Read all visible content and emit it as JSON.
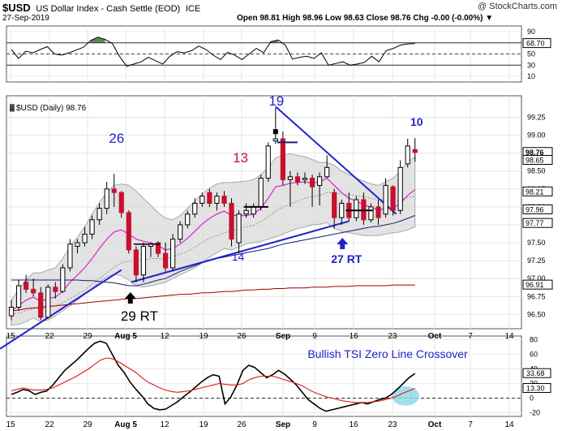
{
  "header": {
    "symbol": "$USD",
    "name": "US Dollar Index - Cash Settle (EOD)",
    "exchange": "ICE",
    "date": "27-Sep-2019",
    "ohlc_text": "Open 98.81  High 98.96  Low 98.63  Close 98.76  Chg -0.00 (-0.00%) ▼",
    "watermark": "@ StockCharts.com"
  },
  "colors": {
    "up": "#ffffff",
    "down": "#c8102e",
    "ema_short": "#e020d0",
    "ema_mid": "#909090",
    "sma_long": "#1a1a7a",
    "sma_200": "#a00000",
    "annotation_blue": "#2222cc",
    "annotation_red": "#d01030",
    "tsi_signal": "#e01818",
    "rsi_fill": "#5a8a5a",
    "highlight": "#8cd6e6"
  },
  "chart_data": [
    {
      "type": "line",
      "panel": "rsi",
      "ylim": [
        0,
        100
      ],
      "ticks": [
        10,
        30,
        50,
        70,
        90
      ],
      "reference_lines": [
        30,
        70
      ],
      "last_value_badge": "68.70",
      "values": [
        58,
        42,
        55,
        52,
        58,
        63,
        50,
        48,
        52,
        57,
        62,
        74,
        80,
        76,
        69,
        46,
        28,
        32,
        36,
        44,
        38,
        32,
        46,
        54,
        52,
        56,
        64,
        58,
        48,
        40,
        53,
        48,
        40,
        50,
        60,
        52,
        72,
        75,
        66,
        41,
        44,
        46,
        42,
        52,
        30,
        33,
        36,
        30,
        32,
        35,
        46,
        36,
        56,
        60,
        66,
        68,
        68.7
      ]
    },
    {
      "type": "candlestick",
      "panel": "price",
      "legend": "$USD (Daily) 98.76",
      "ylim": [
        96.3,
        99.55
      ],
      "yticks": [
        96.5,
        96.75,
        97.0,
        97.25,
        97.5,
        97.75,
        98.0,
        98.25,
        98.5,
        98.75,
        99.0,
        99.25
      ],
      "ytick_labels": [
        "96.50",
        "96.75",
        "97.00",
        "97.25",
        "97.50",
        "97.75",
        "98.00",
        "98.25",
        "98.50",
        "98.75",
        "99.00",
        "99.25"
      ],
      "xtick_labels": [
        "15",
        "22",
        "29",
        "Aug 5",
        "12",
        "19",
        "26",
        "Sep",
        "9",
        "16",
        "23",
        "Oct",
        "7",
        "14"
      ],
      "candles": [
        {
          "o": 96.48,
          "h": 96.7,
          "l": 96.42,
          "c": 96.6
        },
        {
          "o": 96.6,
          "h": 96.98,
          "l": 96.55,
          "c": 96.9
        },
        {
          "o": 96.95,
          "h": 97.05,
          "l": 96.8,
          "c": 96.85
        },
        {
          "o": 96.85,
          "h": 97.0,
          "l": 96.75,
          "c": 96.8
        },
        {
          "o": 96.8,
          "h": 96.88,
          "l": 96.42,
          "c": 96.46
        },
        {
          "o": 96.46,
          "h": 96.92,
          "l": 96.44,
          "c": 96.88
        },
        {
          "o": 96.88,
          "h": 96.95,
          "l": 96.72,
          "c": 96.82
        },
        {
          "o": 96.82,
          "h": 97.2,
          "l": 96.8,
          "c": 97.15
        },
        {
          "o": 97.15,
          "h": 97.55,
          "l": 97.1,
          "c": 97.48
        },
        {
          "o": 97.45,
          "h": 97.55,
          "l": 97.35,
          "c": 97.5
        },
        {
          "o": 97.5,
          "h": 97.72,
          "l": 97.45,
          "c": 97.62
        },
        {
          "o": 97.62,
          "h": 97.88,
          "l": 97.55,
          "c": 97.82
        },
        {
          "o": 97.82,
          "h": 98.05,
          "l": 97.75,
          "c": 97.98
        },
        {
          "o": 97.98,
          "h": 98.35,
          "l": 97.9,
          "c": 98.25
        },
        {
          "o": 98.25,
          "h": 98.46,
          "l": 98.0,
          "c": 98.2
        },
        {
          "o": 98.2,
          "h": 98.22,
          "l": 97.85,
          "c": 97.92
        },
        {
          "o": 97.92,
          "h": 97.95,
          "l": 97.35,
          "c": 97.4
        },
        {
          "o": 97.4,
          "h": 97.45,
          "l": 96.95,
          "c": 97.05
        },
        {
          "o": 97.05,
          "h": 97.5,
          "l": 96.95,
          "c": 97.45
        },
        {
          "o": 97.45,
          "h": 97.5,
          "l": 97.3,
          "c": 97.48
        },
        {
          "o": 97.5,
          "h": 97.52,
          "l": 97.3,
          "c": 97.35
        },
        {
          "o": 97.35,
          "h": 97.5,
          "l": 97.1,
          "c": 97.15
        },
        {
          "o": 97.15,
          "h": 97.62,
          "l": 97.1,
          "c": 97.55
        },
        {
          "o": 97.55,
          "h": 97.8,
          "l": 97.5,
          "c": 97.75
        },
        {
          "o": 97.75,
          "h": 97.95,
          "l": 97.7,
          "c": 97.9
        },
        {
          "o": 97.9,
          "h": 98.12,
          "l": 97.85,
          "c": 98.05
        },
        {
          "o": 98.05,
          "h": 98.2,
          "l": 98.0,
          "c": 98.15
        },
        {
          "o": 98.2,
          "h": 98.25,
          "l": 98.0,
          "c": 98.05
        },
        {
          "o": 98.05,
          "h": 98.2,
          "l": 97.95,
          "c": 98.15
        },
        {
          "o": 98.15,
          "h": 98.22,
          "l": 98.0,
          "c": 98.05
        },
        {
          "o": 98.05,
          "h": 98.12,
          "l": 97.45,
          "c": 97.55
        },
        {
          "o": 97.5,
          "h": 97.95,
          "l": 97.35,
          "c": 97.9
        },
        {
          "o": 97.9,
          "h": 98.05,
          "l": 97.85,
          "c": 97.95
        },
        {
          "o": 97.9,
          "h": 98.05,
          "l": 97.85,
          "c": 98.0
        },
        {
          "o": 98.0,
          "h": 98.45,
          "l": 97.95,
          "c": 98.4
        },
        {
          "o": 98.4,
          "h": 98.9,
          "l": 98.35,
          "c": 98.85
        },
        {
          "o": 98.92,
          "h": 99.38,
          "l": 98.88,
          "c": 98.95
        },
        {
          "o": 98.95,
          "h": 99.05,
          "l": 98.3,
          "c": 98.38
        },
        {
          "o": 98.38,
          "h": 98.5,
          "l": 98.0,
          "c": 98.42
        },
        {
          "o": 98.42,
          "h": 98.48,
          "l": 98.3,
          "c": 98.35
        },
        {
          "o": 98.38,
          "h": 98.48,
          "l": 98.32,
          "c": 98.4
        },
        {
          "o": 98.4,
          "h": 98.45,
          "l": 98.0,
          "c": 98.28
        },
        {
          "o": 98.3,
          "h": 98.48,
          "l": 98.02,
          "c": 98.42
        },
        {
          "o": 98.42,
          "h": 98.72,
          "l": 98.4,
          "c": 98.55
        },
        {
          "o": 98.2,
          "h": 98.25,
          "l": 97.7,
          "c": 97.85
        },
        {
          "o": 97.85,
          "h": 98.1,
          "l": 97.75,
          "c": 98.05
        },
        {
          "o": 98.05,
          "h": 98.2,
          "l": 97.8,
          "c": 97.85
        },
        {
          "o": 97.85,
          "h": 98.15,
          "l": 97.8,
          "c": 98.1
        },
        {
          "o": 98.1,
          "h": 98.2,
          "l": 97.75,
          "c": 97.82
        },
        {
          "o": 97.82,
          "h": 98.05,
          "l": 97.78,
          "c": 98.0
        },
        {
          "o": 98.0,
          "h": 98.1,
          "l": 97.75,
          "c": 97.85
        },
        {
          "o": 97.9,
          "h": 98.4,
          "l": 97.85,
          "c": 98.3
        },
        {
          "o": 98.28,
          "h": 98.3,
          "l": 97.88,
          "c": 97.95
        },
        {
          "o": 97.95,
          "h": 98.65,
          "l": 97.9,
          "c": 98.55
        },
        {
          "o": 98.6,
          "h": 98.95,
          "l": 98.55,
          "c": 98.85
        },
        {
          "o": 98.8,
          "h": 98.96,
          "l": 98.63,
          "c": 98.76
        }
      ],
      "series": [
        {
          "name": "ema_short",
          "values": [
            96.55,
            96.62,
            96.7,
            96.74,
            96.68,
            96.72,
            96.74,
            96.82,
            96.95,
            97.05,
            97.15,
            97.28,
            97.42,
            97.55,
            97.65,
            97.68,
            97.62,
            97.55,
            97.52,
            97.5,
            97.46,
            97.4,
            97.42,
            97.48,
            97.56,
            97.66,
            97.76,
            97.84,
            97.9,
            97.94,
            97.88,
            97.88,
            97.88,
            97.9,
            97.98,
            98.12,
            98.28,
            98.3,
            98.33,
            98.34,
            98.35,
            98.33,
            98.35,
            98.4,
            98.3,
            98.2,
            98.12,
            98.08,
            98.03,
            98.0,
            97.95,
            97.98,
            97.98,
            98.05,
            98.16,
            98.24
          ]
        },
        {
          "name": "ema_mid",
          "values": [
            96.5,
            96.52,
            96.55,
            96.58,
            96.58,
            96.6,
            96.62,
            96.66,
            96.72,
            96.78,
            96.84,
            96.92,
            97.0,
            97.08,
            97.16,
            97.22,
            97.24,
            97.24,
            97.26,
            97.28,
            97.28,
            97.28,
            97.3,
            97.34,
            97.38,
            97.44,
            97.5,
            97.56,
            97.6,
            97.64,
            97.66,
            97.7,
            97.72,
            97.74,
            97.8,
            97.86,
            97.94,
            98.0,
            98.04,
            98.08,
            98.12,
            98.14,
            98.16,
            98.2,
            98.2,
            98.18,
            98.17,
            98.16,
            98.14,
            98.12,
            98.1,
            98.1,
            98.08,
            98.1,
            98.13,
            98.15
          ]
        },
        {
          "name": "sma_long",
          "values": [
            96.98,
            96.98,
            96.98,
            96.98,
            96.98,
            96.98,
            96.98,
            96.98,
            96.98,
            96.98,
            96.97,
            96.97,
            96.96,
            96.95,
            96.94,
            96.92,
            96.9,
            96.9,
            96.92,
            96.95,
            96.98,
            97.0,
            97.05,
            97.1,
            97.14,
            97.18,
            97.22,
            97.25,
            97.28,
            97.3,
            97.32,
            97.34,
            97.36,
            97.38,
            97.4,
            97.42,
            97.45,
            97.48,
            97.5,
            97.52,
            97.54,
            97.56,
            97.58,
            97.6,
            97.62,
            97.64,
            97.66,
            97.68,
            97.7,
            97.72,
            97.73,
            97.75,
            97.77,
            97.8,
            97.84,
            97.88
          ]
        },
        {
          "name": "sma_200",
          "values": [
            96.55,
            96.56,
            96.58,
            96.59,
            96.6,
            96.61,
            96.62,
            96.63,
            96.64,
            96.65,
            96.66,
            96.67,
            96.68,
            96.69,
            96.7,
            96.71,
            96.72,
            96.72,
            96.73,
            96.74,
            96.75,
            96.76,
            96.77,
            96.78,
            96.78,
            96.79,
            96.8,
            96.8,
            96.81,
            96.82,
            96.82,
            96.83,
            96.84,
            96.84,
            96.85,
            96.85,
            96.86,
            96.86,
            96.87,
            96.87,
            96.87,
            96.88,
            96.88,
            96.88,
            96.89,
            96.89,
            96.89,
            96.9,
            96.9,
            96.9,
            96.9,
            96.9,
            96.91,
            96.91,
            96.91,
            96.91
          ]
        }
      ],
      "band_upper": [
        96.7,
        96.85,
        96.98,
        97.08,
        97.08,
        97.12,
        97.15,
        97.28,
        97.45,
        97.58,
        97.72,
        97.9,
        98.06,
        98.2,
        98.3,
        98.32,
        98.3,
        98.22,
        98.12,
        98.02,
        97.92,
        97.84,
        97.82,
        97.88,
        97.98,
        98.08,
        98.18,
        98.26,
        98.32,
        98.34,
        98.34,
        98.35,
        98.36,
        98.38,
        98.45,
        98.55,
        98.68,
        98.72,
        98.74,
        98.72,
        98.7,
        98.66,
        98.62,
        98.62,
        98.58,
        98.5,
        98.45,
        98.4,
        98.36,
        98.32,
        98.3,
        98.35,
        98.4,
        98.5,
        98.62,
        98.7
      ],
      "band_lower": [
        96.35,
        96.36,
        96.4,
        96.45,
        96.4,
        96.42,
        96.48,
        96.55,
        96.62,
        96.7,
        96.78,
        96.86,
        96.95,
        97.02,
        97.06,
        97.04,
        96.98,
        96.9,
        96.88,
        96.9,
        96.92,
        96.95,
        97.0,
        97.05,
        97.1,
        97.15,
        97.22,
        97.3,
        97.36,
        97.42,
        97.4,
        97.44,
        97.48,
        97.5,
        97.52,
        97.55,
        97.58,
        97.62,
        97.66,
        97.7,
        97.72,
        97.75,
        97.76,
        97.78,
        97.7,
        97.66,
        97.64,
        97.62,
        97.6,
        97.6,
        97.6,
        97.62,
        97.64,
        97.65,
        97.68,
        97.72
      ],
      "right_badges": [
        {
          "value": 98.76,
          "label": "98.76",
          "style": "bold"
        },
        {
          "value": 98.65,
          "label": "98.65",
          "style": "plain"
        },
        {
          "value": 98.21,
          "label": "98.21",
          "style": "plain"
        },
        {
          "value": 97.96,
          "label": "97.96",
          "style": "plain"
        },
        {
          "value": 97.77,
          "label": "97.77",
          "style": "plain"
        },
        {
          "value": 96.91,
          "label": "96.91",
          "style": "plain"
        }
      ],
      "annotations": [
        {
          "text": "26",
          "color": "annotation_blue"
        },
        {
          "text": "13",
          "color": "annotation_red"
        },
        {
          "text": "19",
          "color": "annotation_blue"
        },
        {
          "text": "10",
          "color": "annotation_blue"
        },
        {
          "text": "14",
          "color": "annotation_blue"
        },
        {
          "text": "27 RT",
          "color": "annotation_blue"
        },
        {
          "text": "29 RT",
          "color": "black"
        }
      ]
    },
    {
      "type": "line",
      "panel": "tsi",
      "title": "Bullish TSI Zero Line Crossover",
      "ylim": [
        -25,
        85
      ],
      "ticks": [
        -20,
        0,
        20,
        40,
        60,
        80
      ],
      "tick_labels": [
        "-20",
        "0",
        "20",
        "40",
        "60",
        "80"
      ],
      "series": [
        {
          "name": "tsi",
          "values": [
            5,
            8,
            12,
            10,
            5,
            8,
            10,
            18,
            28,
            38,
            45,
            52,
            60,
            68,
            75,
            78,
            75,
            60,
            45,
            35,
            22,
            12,
            3,
            -8,
            -14,
            -16,
            -15,
            -10,
            -5,
            2,
            8,
            15,
            22,
            28,
            32,
            30,
            -8,
            2,
            18,
            38,
            45,
            42,
            35,
            28,
            32,
            38,
            33,
            26,
            18,
            8,
            -2,
            -8,
            -14,
            -18,
            -16,
            -14,
            -12,
            -10,
            -8,
            -6,
            -8,
            -5,
            -2,
            0,
            5,
            12,
            20,
            28,
            33.68
          ]
        },
        {
          "name": "signal",
          "values": [
            10,
            12,
            14,
            12,
            11,
            11,
            12,
            14,
            18,
            22,
            26,
            30,
            35,
            40,
            46,
            52,
            55,
            54,
            50,
            45,
            40,
            35,
            28,
            22,
            18,
            14,
            11,
            9,
            8,
            9,
            10,
            12,
            14,
            16,
            18,
            20,
            19,
            18,
            18,
            20,
            25,
            28,
            30,
            30,
            30,
            28,
            25,
            23,
            20,
            17,
            12,
            8,
            5,
            2,
            0,
            -2,
            -4,
            -5,
            -6,
            -6,
            -6,
            -5,
            -4,
            -2,
            0,
            3,
            7,
            10,
            13.3
          ]
        }
      ],
      "last_values": [
        "33.68",
        "13.30"
      ]
    }
  ]
}
